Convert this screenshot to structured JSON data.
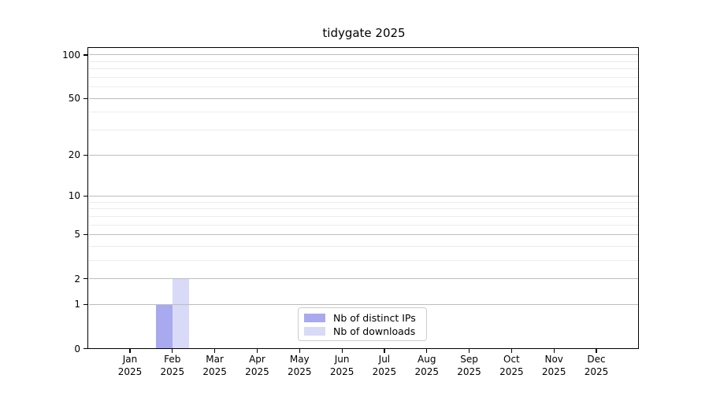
{
  "title": "tidygate 2025",
  "chart_data": {
    "type": "bar",
    "title": "tidygate 2025",
    "year": "2025",
    "categories": [
      {
        "month": "Jan",
        "year": "2025"
      },
      {
        "month": "Feb",
        "year": "2025"
      },
      {
        "month": "Mar",
        "year": "2025"
      },
      {
        "month": "Apr",
        "year": "2025"
      },
      {
        "month": "May",
        "year": "2025"
      },
      {
        "month": "Jun",
        "year": "2025"
      },
      {
        "month": "Jul",
        "year": "2025"
      },
      {
        "month": "Aug",
        "year": "2025"
      },
      {
        "month": "Sep",
        "year": "2025"
      },
      {
        "month": "Oct",
        "year": "2025"
      },
      {
        "month": "Nov",
        "year": "2025"
      },
      {
        "month": "Dec",
        "year": "2025"
      }
    ],
    "series": [
      {
        "name": "Nb of distinct IPs",
        "color": "#a9a9f0",
        "values": [
          0,
          1,
          0,
          0,
          0,
          0,
          0,
          0,
          0,
          0,
          0,
          0
        ]
      },
      {
        "name": "Nb of downloads",
        "color": "#d9d9f8",
        "values": [
          0,
          2,
          0,
          0,
          0,
          0,
          0,
          0,
          0,
          0,
          0,
          0
        ]
      }
    ],
    "y_axis": {
      "scale": "log1p",
      "major_ticks": [
        0,
        1,
        2,
        5,
        10,
        20,
        50,
        100
      ],
      "minor_gridlines": [
        3,
        4,
        6,
        7,
        8,
        9,
        30,
        40,
        60,
        70,
        80,
        90
      ],
      "range": [
        0,
        112
      ]
    },
    "x_axis": {
      "label": "",
      "tick_style": "two-line month/year"
    },
    "grid": "horizontal",
    "legend": {
      "position": "inside-bottom-center",
      "border_color": "#cccccc"
    }
  },
  "colors": {
    "background": "#ffffff",
    "spine": "#000000",
    "major_grid": "#bdbdbd",
    "minor_grid": "#ececec",
    "bar_distinct_ips": "#a9a9f0",
    "bar_downloads": "#d9d9f8",
    "text": "#000000"
  }
}
